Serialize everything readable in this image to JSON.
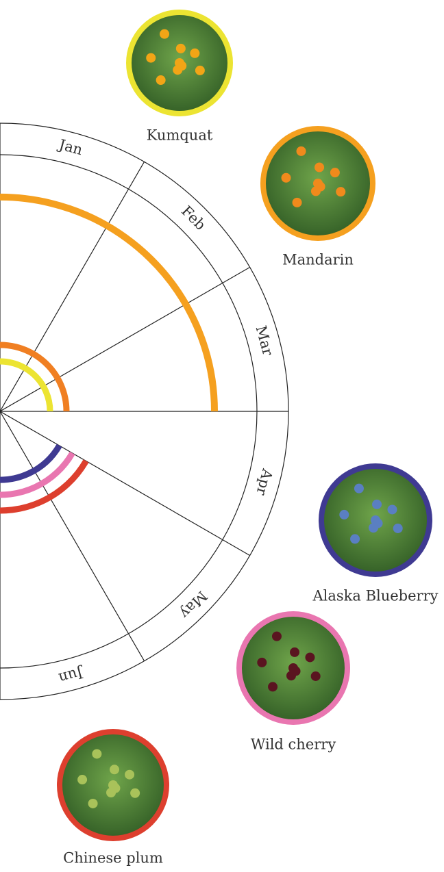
{
  "months": [
    "Jan",
    "Feb",
    "Mar",
    "Apr",
    "May",
    "Jun"
  ],
  "fruits": [
    {
      "label": "Kumquat"
    },
    {
      "label": "Mandarin"
    },
    {
      "label": "Alaska Blueberry"
    },
    {
      "label": "Wild cherry"
    },
    {
      "label": "Chinese plum"
    }
  ]
}
